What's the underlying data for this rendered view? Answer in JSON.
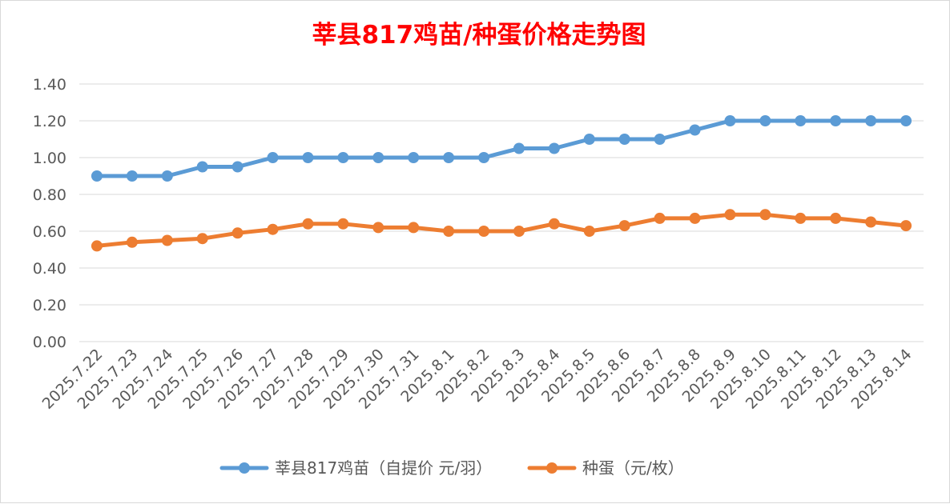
{
  "chart_data": {
    "type": "line",
    "title": "莘县817鸡苗/种蛋价格走势图",
    "xlabel": "",
    "ylabel": "",
    "ylim": [
      0,
      1.4
    ],
    "yticks": [
      "0.00",
      "0.20",
      "0.40",
      "0.60",
      "0.80",
      "1.00",
      "1.20",
      "1.40"
    ],
    "ytick_values": [
      0,
      0.2,
      0.4,
      0.6,
      0.8,
      1.0,
      1.2,
      1.4
    ],
    "grid": true,
    "legend_position": "bottom",
    "categories": [
      "2025.7.22",
      "2025.7.23",
      "2025.7.24",
      "2025.7.25",
      "2025.7.26",
      "2025.7.27",
      "2025.7.28",
      "2025.7.29",
      "2025.7.30",
      "2025.7.31",
      "2025.8.1",
      "2025.8.2",
      "2025.8.3",
      "2025.8.4",
      "2025.8.5",
      "2025.8.6",
      "2025.8.7",
      "2025.8.8",
      "2025.8.9",
      "2025.8.10",
      "2025.8.11",
      "2025.8.12",
      "2025.8.13",
      "2025.8.14"
    ],
    "series": [
      {
        "name": "莘县817鸡苗（自提价 元/羽）",
        "color": "#5b9bd5",
        "values": [
          0.9,
          0.9,
          0.9,
          0.95,
          0.95,
          1.0,
          1.0,
          1.0,
          1.0,
          1.0,
          1.0,
          1.0,
          1.05,
          1.05,
          1.1,
          1.1,
          1.1,
          1.15,
          1.2,
          1.2,
          1.2,
          1.2,
          1.2,
          1.2
        ]
      },
      {
        "name": "种蛋（元/枚）",
        "color": "#ed7d31",
        "values": [
          0.52,
          0.54,
          0.55,
          0.56,
          0.59,
          0.61,
          0.64,
          0.64,
          0.62,
          0.62,
          0.6,
          0.6,
          0.6,
          0.64,
          0.6,
          0.63,
          0.67,
          0.67,
          0.69,
          0.69,
          0.67,
          0.67,
          0.65,
          0.63
        ]
      }
    ]
  }
}
